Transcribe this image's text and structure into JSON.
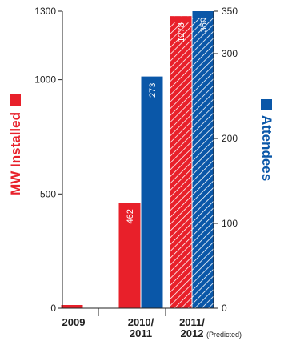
{
  "chart_data": {
    "type": "bar",
    "categories": [
      {
        "line1": "2009",
        "line2": "",
        "note": ""
      },
      {
        "line1": "2010/",
        "line2": "2011",
        "note": ""
      },
      {
        "line1": "2011/",
        "line2": "2012",
        "note": "(Predicted)"
      }
    ],
    "series": [
      {
        "name": "MW Installed",
        "axis": "left",
        "color": "#e8202a",
        "values": [
          14,
          462,
          1278
        ],
        "labels": [
          "14",
          "462",
          "1278"
        ],
        "hatched": [
          false,
          false,
          true
        ]
      },
      {
        "name": "Attendees",
        "axis": "right",
        "color": "#0a57a8",
        "values": [
          null,
          273,
          350
        ],
        "labels": [
          "",
          "273",
          "350"
        ],
        "hatched": [
          false,
          false,
          true
        ]
      }
    ],
    "left_axis": {
      "label": "MW Installed",
      "ylim": [
        0,
        1300
      ],
      "ticks": [
        0,
        500,
        1000,
        1300
      ],
      "color": "#e8202a"
    },
    "right_axis": {
      "label": "Attendees",
      "ylim": [
        0,
        350
      ],
      "ticks": [
        0,
        100,
        200,
        300,
        350
      ],
      "color": "#0a57a8"
    },
    "legend": "axis-labels",
    "grid": false
  }
}
